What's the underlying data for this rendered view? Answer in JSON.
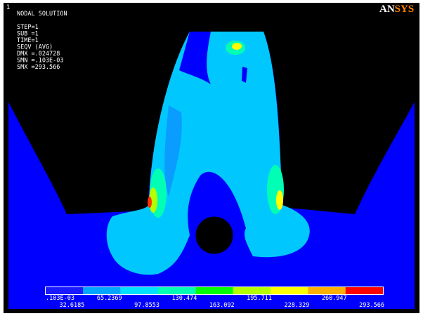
{
  "window_number": "1",
  "info": {
    "lines": [
      "NODAL SOLUTION",
      "STEP=1",
      "SUB =1",
      "TIME=1",
      "SEQV     (AVG)",
      "DMX =.024728",
      "SMN =.103E-03",
      "SMX =293.566"
    ]
  },
  "logo": {
    "prefix": "AN",
    "suffix": "SYS"
  },
  "legend": {
    "colors": [
      "#1a1aff",
      "#00a6ff",
      "#00e0ff",
      "#00ffb4",
      "#00ff00",
      "#b4ff00",
      "#ffff00",
      "#ffb000",
      "#ff0000"
    ],
    "labels": [
      ".103E-03",
      "32.6185",
      "65.2369",
      "97.8553",
      "130.474",
      "163.092",
      "195.711",
      "228.329",
      "260.947",
      "293.566"
    ]
  }
}
